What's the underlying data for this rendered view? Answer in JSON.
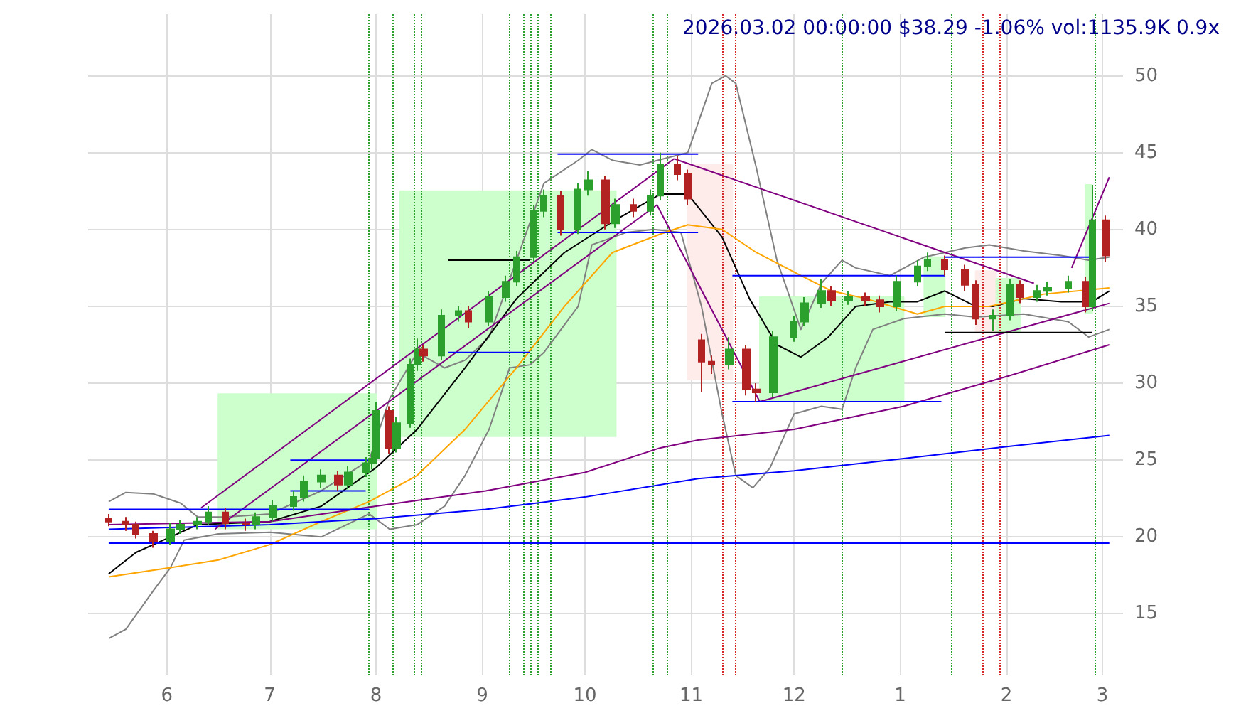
{
  "chart_data": {
    "type": "candlestick",
    "title": "2026.03.02 00:00:00 $38.29 -1.06% vol:1135.9K 0.9x",
    "x": [
      "2025-05-15",
      "2025-05-20",
      "2025-05-23",
      "2025-05-28",
      "2025-06-02",
      "2025-06-05",
      "2025-06-10",
      "2025-06-13",
      "2025-06-18",
      "2025-06-24",
      "2025-06-27",
      "2025-07-02",
      "2025-07-08",
      "2025-07-11",
      "2025-07-16",
      "2025-07-21",
      "2025-07-24",
      "2025-07-29",
      "2025-07-31",
      "2025-08-01",
      "2025-08-05",
      "2025-08-07",
      "2025-08-11",
      "2025-08-13",
      "2025-08-15",
      "2025-08-20",
      "2025-08-25",
      "2025-08-28",
      "2025-09-03",
      "2025-09-08",
      "2025-09-11",
      "2025-09-16",
      "2025-09-19",
      "2025-09-24",
      "2025-09-29",
      "2025-10-02",
      "2025-10-07",
      "2025-10-10",
      "2025-10-15",
      "2025-10-20",
      "2025-10-23",
      "2025-10-28",
      "2025-10-31",
      "2025-11-04",
      "2025-11-07",
      "2025-11-12",
      "2025-11-17",
      "2025-11-20",
      "2025-11-25",
      "2025-12-01",
      "2025-12-04",
      "2025-12-09",
      "2025-12-12",
      "2025-12-17",
      "2025-12-22",
      "2025-12-26",
      "2025-12-31",
      "2026-01-06",
      "2026-01-09",
      "2026-01-14",
      "2026-01-20",
      "2026-01-23",
      "2026-01-28",
      "2026-02-02",
      "2026-02-05",
      "2026-02-10",
      "2026-02-13",
      "2026-02-19",
      "2026-02-24",
      "2026-02-26",
      "2026-03-02"
    ],
    "ohlc": [
      [
        21.2,
        21.5,
        20.7,
        21.0
      ],
      [
        21.0,
        21.3,
        20.4,
        20.8
      ],
      [
        20.8,
        21.0,
        19.9,
        20.2
      ],
      [
        20.2,
        20.4,
        19.3,
        19.7
      ],
      [
        19.7,
        20.9,
        19.5,
        20.5
      ],
      [
        20.5,
        21.1,
        20.2,
        20.8
      ],
      [
        20.8,
        21.3,
        20.5,
        21.0
      ],
      [
        21.0,
        22.0,
        20.8,
        21.6
      ],
      [
        21.6,
        21.9,
        20.5,
        20.9
      ],
      [
        20.9,
        21.2,
        20.4,
        20.8
      ],
      [
        20.8,
        21.6,
        20.5,
        21.3
      ],
      [
        21.3,
        22.4,
        21.0,
        22.0
      ],
      [
        22.0,
        23.0,
        21.7,
        22.6
      ],
      [
        22.6,
        24.0,
        22.3,
        23.6
      ],
      [
        23.6,
        24.4,
        23.2,
        24.0
      ],
      [
        24.0,
        24.3,
        23.0,
        23.4
      ],
      [
        23.4,
        24.6,
        23.1,
        24.2
      ],
      [
        24.2,
        25.2,
        23.9,
        24.8
      ],
      [
        24.8,
        25.5,
        24.4,
        25.1
      ],
      [
        25.1,
        28.8,
        24.9,
        28.2
      ],
      [
        28.2,
        28.5,
        25.4,
        25.8
      ],
      [
        25.8,
        27.8,
        25.5,
        27.4
      ],
      [
        27.4,
        31.6,
        27.1,
        31.2
      ],
      [
        31.2,
        32.9,
        30.8,
        32.2
      ],
      [
        32.2,
        32.5,
        31.4,
        31.8
      ],
      [
        31.8,
        34.8,
        31.5,
        34.4
      ],
      [
        34.4,
        35.0,
        34.0,
        34.7
      ],
      [
        34.7,
        35.0,
        33.6,
        34.0
      ],
      [
        34.0,
        36.0,
        33.7,
        35.6
      ],
      [
        35.6,
        37.0,
        35.3,
        36.6
      ],
      [
        36.6,
        38.6,
        36.3,
        38.2
      ],
      [
        38.2,
        41.6,
        37.9,
        41.2
      ],
      [
        41.2,
        42.6,
        40.8,
        42.2
      ],
      [
        42.2,
        42.5,
        39.6,
        40.0
      ],
      [
        40.0,
        43.0,
        39.7,
        42.6
      ],
      [
        42.6,
        43.8,
        42.2,
        43.2
      ],
      [
        43.2,
        43.5,
        40.0,
        40.4
      ],
      [
        40.4,
        42.0,
        40.1,
        41.6
      ],
      [
        41.6,
        42.0,
        40.8,
        41.2
      ],
      [
        41.2,
        42.6,
        40.9,
        42.2
      ],
      [
        42.2,
        45.0,
        41.9,
        44.2
      ],
      [
        44.2,
        44.8,
        43.2,
        43.6
      ],
      [
        43.6,
        43.9,
        41.6,
        42.0
      ],
      [
        32.8,
        33.2,
        29.4,
        31.4
      ],
      [
        31.4,
        31.8,
        30.6,
        31.2
      ],
      [
        31.2,
        33.0,
        30.9,
        32.2
      ],
      [
        32.2,
        32.5,
        29.2,
        29.6
      ],
      [
        29.6,
        30.0,
        28.8,
        29.4
      ],
      [
        29.4,
        33.4,
        29.1,
        33.0
      ],
      [
        33.0,
        34.4,
        32.7,
        34.0
      ],
      [
        34.0,
        35.6,
        33.7,
        35.2
      ],
      [
        35.2,
        36.8,
        34.9,
        36.0
      ],
      [
        36.0,
        36.3,
        35.0,
        35.4
      ],
      [
        35.4,
        36.0,
        35.1,
        35.6
      ],
      [
        35.6,
        35.9,
        35.0,
        35.4
      ],
      [
        35.4,
        35.7,
        34.6,
        35.0
      ],
      [
        35.0,
        37.0,
        34.7,
        36.6
      ],
      [
        36.6,
        38.0,
        36.3,
        37.6
      ],
      [
        37.6,
        38.5,
        37.3,
        38.0
      ],
      [
        38.0,
        38.3,
        37.0,
        37.4
      ],
      [
        37.4,
        37.7,
        36.0,
        36.4
      ],
      [
        36.4,
        36.7,
        33.8,
        34.2
      ],
      [
        34.2,
        34.8,
        33.4,
        34.4
      ],
      [
        34.4,
        36.8,
        34.1,
        36.4
      ],
      [
        36.4,
        36.7,
        35.2,
        35.6
      ],
      [
        35.6,
        36.4,
        35.3,
        36.0
      ],
      [
        36.0,
        36.6,
        35.7,
        36.2
      ],
      [
        36.2,
        37.0,
        35.9,
        36.6
      ],
      [
        36.6,
        36.9,
        34.6,
        35.0
      ],
      [
        35.0,
        42.9,
        34.7,
        40.6
      ],
      [
        40.6,
        40.9,
        37.9,
        38.3
      ]
    ],
    "series": [
      {
        "type": "area",
        "color": "#ccffcc",
        "x": [
          "2025-06-16",
          "2025-06-16",
          "2025-08-01",
          "2025-08-01"
        ],
        "values": [
          20.5,
          29.3,
          29.3,
          20.5
        ]
      },
      {
        "type": "area",
        "color": "#ccffcc",
        "x": [
          "2025-08-08",
          "2025-08-08",
          "2025-10-10",
          "2025-10-10"
        ],
        "values": [
          26.5,
          42.5,
          42.5,
          26.5
        ]
      },
      {
        "type": "area",
        "color": "#fdecea",
        "x": [
          "2025-10-31",
          "2025-10-31",
          "2025-11-13",
          "2025-11-13"
        ],
        "values": [
          30.2,
          44.2,
          44.2,
          30.2
        ]
      },
      {
        "type": "area",
        "color": "#ccffcc",
        "x": [
          "2025-11-21",
          "2025-11-21",
          "2026-01-02",
          "2026-01-02"
        ],
        "values": [
          28.8,
          35.6,
          35.6,
          28.8
        ]
      },
      {
        "type": "area",
        "color": "#ccffcc",
        "x": [
          "2026-01-08",
          "2026-01-08",
          "2026-01-14",
          "2026-01-14"
        ],
        "values": [
          34.3,
          38.2,
          38.2,
          34.3
        ]
      },
      {
        "type": "area",
        "color": "#fdecea",
        "x": [
          "2026-01-23",
          "2026-01-23",
          "2026-01-29",
          "2026-01-29"
        ],
        "values": [
          33.3,
          37.3,
          37.3,
          33.3
        ]
      },
      {
        "type": "area",
        "color": "#ccffcc",
        "x": [
          "2026-01-29",
          "2026-01-29",
          "2026-02-05",
          "2026-02-05"
        ],
        "values": [
          33.3,
          36.8,
          36.8,
          33.3
        ]
      },
      {
        "type": "area",
        "color": "#ccffcc",
        "x": [
          "2026-02-24",
          "2026-02-24",
          "2026-02-26",
          "2026-02-26"
        ],
        "values": [
          34.5,
          42.9,
          42.9,
          34.5
        ]
      },
      {
        "type": "line",
        "color": "#808080",
        "x": [
          "2025-05-15",
          "2025-05-20",
          "2025-05-28",
          "2025-06-05",
          "2025-06-10",
          "2025-06-18",
          "2025-07-01",
          "2025-07-16",
          "2025-07-30",
          "2025-08-05",
          "2025-08-13",
          "2025-08-21",
          "2025-08-27",
          "2025-09-03",
          "2025-09-11",
          "2025-09-19",
          "2025-09-29",
          "2025-10-03",
          "2025-10-09",
          "2025-10-17",
          "2025-10-24",
          "2025-10-31",
          "2025-11-07",
          "2025-11-11",
          "2025-11-14",
          "2025-11-20",
          "2025-11-26",
          "2025-12-03",
          "2025-12-09",
          "2025-12-15",
          "2025-12-19",
          "2025-12-29",
          "2026-01-08",
          "2026-01-20",
          "2026-01-27",
          "2026-02-06",
          "2026-02-17",
          "2026-02-25",
          "2026-03-03"
        ],
        "values": [
          22.3,
          22.9,
          22.8,
          22.2,
          21.3,
          21.3,
          21.5,
          23.0,
          25.0,
          29.0,
          32.0,
          31.0,
          31.5,
          33.0,
          38.0,
          43.0,
          44.5,
          45.2,
          44.5,
          44.2,
          44.6,
          45.0,
          49.5,
          50.0,
          49.5,
          44.0,
          38.0,
          33.5,
          36.5,
          38.0,
          37.5,
          37.0,
          38.2,
          38.8,
          39.0,
          38.6,
          38.3,
          38.0,
          38.2
        ]
      },
      {
        "type": "line",
        "color": "#808080",
        "x": [
          "2025-05-15",
          "2025-05-20",
          "2025-05-28",
          "2025-06-02",
          "2025-06-06",
          "2025-06-16",
          "2025-07-01",
          "2025-07-16",
          "2025-07-30",
          "2025-08-05",
          "2025-08-13",
          "2025-08-21",
          "2025-08-27",
          "2025-09-03",
          "2025-09-09",
          "2025-09-15",
          "2025-09-19",
          "2025-09-29",
          "2025-10-03",
          "2025-10-13",
          "2025-10-21",
          "2025-10-29",
          "2025-11-04",
          "2025-11-10",
          "2025-11-14",
          "2025-11-19",
          "2025-11-24",
          "2025-12-01",
          "2025-12-09",
          "2025-12-15",
          "2025-12-19",
          "2025-12-24",
          "2026-01-02",
          "2026-01-14",
          "2026-01-23",
          "2026-02-06",
          "2026-02-19",
          "2026-02-25",
          "2026-03-03"
        ],
        "values": [
          13.4,
          14.0,
          16.5,
          18.0,
          19.8,
          20.2,
          20.3,
          20.0,
          21.5,
          20.5,
          20.8,
          22.0,
          24.0,
          27.0,
          31.0,
          31.2,
          32.0,
          35.0,
          39.0,
          39.8,
          40.0,
          39.8,
          35.0,
          28.0,
          24.0,
          23.2,
          24.5,
          28.0,
          28.5,
          28.3,
          31.0,
          33.5,
          34.2,
          34.5,
          34.3,
          34.5,
          34.0,
          33.0,
          33.5
        ]
      },
      {
        "type": "line",
        "color": "#000000",
        "x": [
          "2025-05-15",
          "2025-05-23",
          "2025-06-02",
          "2025-06-10",
          "2025-07-01",
          "2025-07-16",
          "2025-08-01",
          "2025-08-13",
          "2025-08-27",
          "2025-09-11",
          "2025-09-25",
          "2025-10-09",
          "2025-10-23",
          "2025-10-31",
          "2025-11-10",
          "2025-11-18",
          "2025-11-26",
          "2025-12-03",
          "2025-12-11",
          "2025-12-19",
          "2025-12-29",
          "2026-01-06",
          "2026-01-14",
          "2026-01-23",
          "2026-01-28",
          "2026-02-06",
          "2026-02-17",
          "2026-02-20",
          "2026-02-26",
          "2026-03-03"
        ],
        "values": [
          17.6,
          19.0,
          20.0,
          20.8,
          21.0,
          22.0,
          24.5,
          27.0,
          31.0,
          35.5,
          38.5,
          40.5,
          42.3,
          42.3,
          39.5,
          35.5,
          32.5,
          31.7,
          33.0,
          35.0,
          35.3,
          35.3,
          36.0,
          35.0,
          35.0,
          35.5,
          35.3,
          35.3,
          35.3,
          36.0
        ]
      },
      {
        "type": "line",
        "color": "#ffa500",
        "x": [
          "2025-05-15",
          "2025-06-02",
          "2025-06-16",
          "2025-07-01",
          "2025-07-16",
          "2025-07-30",
          "2025-08-13",
          "2025-08-27",
          "2025-09-11",
          "2025-09-25",
          "2025-10-09",
          "2025-10-23",
          "2025-10-31",
          "2025-11-10",
          "2025-11-20",
          "2025-12-03",
          "2025-12-12",
          "2025-12-22",
          "2026-01-06",
          "2026-01-14",
          "2026-01-27",
          "2026-02-12",
          "2026-03-03"
        ],
        "values": [
          17.4,
          18.0,
          18.5,
          19.5,
          21.0,
          22.3,
          24.0,
          27.0,
          31.0,
          35.0,
          38.5,
          39.7,
          40.3,
          40.0,
          38.5,
          37.0,
          36.0,
          35.5,
          34.5,
          35.0,
          35.0,
          35.8,
          36.2
        ]
      },
      {
        "type": "line",
        "color": "#800080",
        "x": [
          "2025-05-15",
          "2025-07-01",
          "2025-08-01",
          "2025-09-02",
          "2025-10-01",
          "2025-10-23",
          "2025-11-03",
          "2025-12-01",
          "2026-01-02",
          "2026-02-02",
          "2026-03-03"
        ],
        "values": [
          20.8,
          21.0,
          22.0,
          23.0,
          24.2,
          25.8,
          26.3,
          27.0,
          28.5,
          30.5,
          32.5
        ]
      },
      {
        "type": "line",
        "color": "#0000ff",
        "x": [
          "2025-05-15",
          "2025-07-01",
          "2025-08-01",
          "2025-09-02",
          "2025-10-01",
          "2025-11-03",
          "2025-12-01",
          "2026-01-02",
          "2026-02-02",
          "2026-03-03"
        ],
        "values": [
          20.5,
          20.8,
          21.2,
          21.8,
          22.6,
          23.8,
          24.3,
          25.1,
          25.9,
          26.6
        ]
      },
      {
        "type": "line",
        "color": "#800080",
        "x": [
          "2025-06-11",
          "2025-10-27"
        ],
        "values": [
          21.9,
          44.6
        ]
      },
      {
        "type": "line",
        "color": "#800080",
        "x": [
          "2025-06-15",
          "2025-10-22"
        ],
        "values": [
          20.5,
          41.6
        ]
      },
      {
        "type": "line",
        "color": "#800080",
        "x": [
          "2025-10-22",
          "2025-11-21"
        ],
        "values": [
          41.6,
          28.8
        ]
      },
      {
        "type": "line",
        "color": "#800080",
        "x": [
          "2025-10-27",
          "2026-02-09"
        ],
        "values": [
          44.6,
          36.5
        ]
      },
      {
        "type": "line",
        "color": "#800080",
        "x": [
          "2025-11-21",
          "2026-03-03"
        ],
        "values": [
          28.8,
          35.2
        ]
      },
      {
        "type": "line",
        "color": "#800080",
        "x": [
          "2026-02-20",
          "2026-03-03"
        ],
        "values": [
          37.5,
          43.4
        ]
      },
      {
        "type": "line",
        "color": "#0000ff",
        "x": [
          "2025-05-15",
          "2026-03-03"
        ],
        "values": [
          19.6,
          19.6
        ]
      },
      {
        "type": "line",
        "color": "#0000ff",
        "x": [
          "2025-05-15",
          "2025-07-30"
        ],
        "values": [
          21.8,
          21.8
        ]
      },
      {
        "type": "line",
        "color": "#0000ff",
        "x": [
          "2025-07-07",
          "2025-07-30"
        ],
        "values": [
          25.0,
          25.0
        ]
      },
      {
        "type": "line",
        "color": "#0000ff",
        "x": [
          "2025-07-07",
          "2025-07-29"
        ],
        "values": [
          23.0,
          23.0
        ]
      },
      {
        "type": "line",
        "color": "#0000ff",
        "x": [
          "2025-08-22",
          "2025-09-15"
        ],
        "values": [
          32.0,
          32.0
        ]
      },
      {
        "type": "line",
        "color": "#000000",
        "x": [
          "2025-08-22",
          "2025-09-15"
        ],
        "values": [
          38.0,
          38.0
        ]
      },
      {
        "type": "line",
        "color": "#0000ff",
        "x": [
          "2025-09-23",
          "2025-11-03"
        ],
        "values": [
          44.9,
          44.9
        ]
      },
      {
        "type": "line",
        "color": "#0000ff",
        "x": [
          "2025-09-23",
          "2025-11-03"
        ],
        "values": [
          39.8,
          39.8
        ]
      },
      {
        "type": "line",
        "color": "#0000ff",
        "x": [
          "2025-11-13",
          "2026-01-14"
        ],
        "values": [
          37.0,
          37.0
        ]
      },
      {
        "type": "line",
        "color": "#0000ff",
        "x": [
          "2025-11-13",
          "2026-01-13"
        ],
        "values": [
          28.8,
          28.8
        ]
      },
      {
        "type": "line",
        "color": "#0000ff",
        "x": [
          "2026-01-14",
          "2026-02-26"
        ],
        "values": [
          38.2,
          38.2
        ]
      },
      {
        "type": "line",
        "color": "#000000",
        "x": [
          "2026-01-14",
          "2026-02-26"
        ],
        "values": [
          33.3,
          33.3
        ]
      }
    ],
    "ref_lines": [
      {
        "axis": "x",
        "value": "2025-07-30",
        "color": "#2ca02c",
        "line_style": "dotted"
      },
      {
        "axis": "x",
        "value": "2025-08-06",
        "color": "#2ca02c",
        "line_style": "dotted"
      },
      {
        "axis": "x",
        "value": "2025-08-12",
        "color": "#2ca02c",
        "line_style": "dotted"
      },
      {
        "axis": "x",
        "value": "2025-08-14",
        "color": "#2ca02c",
        "line_style": "dotted"
      },
      {
        "axis": "x",
        "value": "2025-09-09",
        "color": "#2ca02c",
        "line_style": "dotted"
      },
      {
        "axis": "x",
        "value": "2025-09-13",
        "color": "#2ca02c",
        "line_style": "dotted"
      },
      {
        "axis": "x",
        "value": "2025-09-15",
        "color": "#2ca02c",
        "line_style": "dotted"
      },
      {
        "axis": "x",
        "value": "2025-09-17",
        "color": "#2ca02c",
        "line_style": "dotted"
      },
      {
        "axis": "x",
        "value": "2025-09-21",
        "color": "#2ca02c",
        "line_style": "dotted"
      },
      {
        "axis": "x",
        "value": "2025-10-21",
        "color": "#2ca02c",
        "line_style": "dotted"
      },
      {
        "axis": "x",
        "value": "2025-10-25",
        "color": "#2ca02c",
        "line_style": "dotted"
      },
      {
        "axis": "x",
        "value": "2025-11-10",
        "color": "#d62728",
        "line_style": "dotted"
      },
      {
        "axis": "x",
        "value": "2025-11-14",
        "color": "#d62728",
        "line_style": "dotted"
      },
      {
        "axis": "x",
        "value": "2025-12-15",
        "color": "#2ca02c",
        "line_style": "dotted"
      },
      {
        "axis": "x",
        "value": "2026-01-16",
        "color": "#2ca02c",
        "line_style": "dotted"
      },
      {
        "axis": "x",
        "value": "2026-01-25",
        "color": "#d62728",
        "line_style": "dotted"
      },
      {
        "axis": "x",
        "value": "2026-01-30",
        "color": "#d62728",
        "line_style": "dotted"
      },
      {
        "axis": "x",
        "value": "2026-02-27",
        "color": "#2ca02c",
        "line_style": "dotted"
      }
    ],
    "xlim": [
      "2025-05-09",
      "2026-03-07"
    ],
    "xticks": [
      {
        "value": "2025-06-01",
        "label": "6"
      },
      {
        "value": "2025-07-01",
        "label": "7"
      },
      {
        "value": "2025-08-01",
        "label": "8"
      },
      {
        "value": "2025-09-01",
        "label": "9"
      },
      {
        "value": "2025-10-01",
        "label": "10"
      },
      {
        "value": "2025-11-01",
        "label": "11"
      },
      {
        "value": "2025-12-01",
        "label": "12"
      },
      {
        "value": "2026-01-01",
        "label": "1"
      },
      {
        "value": "2026-02-01",
        "label": "2"
      },
      {
        "value": "2026-03-01",
        "label": "3"
      }
    ],
    "ylim": [
      11,
      54
    ],
    "yticks": [
      15,
      20,
      25,
      30,
      35,
      40,
      45,
      50
    ],
    "grid": true
  }
}
